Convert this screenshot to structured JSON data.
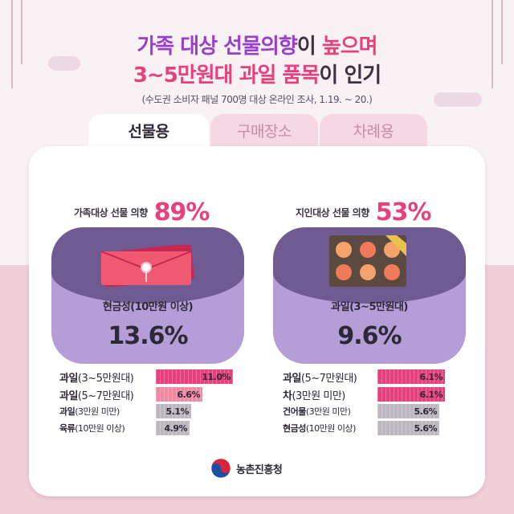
{
  "title": {
    "line1_part1": "가족 대상 선물의향",
    "line1_part2": "이 ",
    "line1_part3": "높으며",
    "line2_part1": "3~5만원대 과일 품목",
    "line2_part2": "이 인기"
  },
  "subtitle": "(수도권 소비자 패널 700명 대상 온라인 조사, 1.19. ~ 20.)",
  "tabs": [
    {
      "label": "선물용",
      "active": true
    },
    {
      "label": "구매장소",
      "active": false
    },
    {
      "label": "차례용",
      "active": false
    }
  ],
  "family": {
    "label": "가족대상 선물 의향",
    "percent": "89%",
    "top_item": "현금성(10만원 이상)",
    "top_value": "13.6%",
    "rows": [
      {
        "bold": "과일",
        "rest": "(3~5만원대)",
        "value": "11.0%",
        "color": "#e8407c",
        "fraction": 1.0
      },
      {
        "bold": "과일",
        "rest": "(5~7만원대)",
        "value": "6.6%",
        "color": "#f08aa2",
        "fraction": 0.6
      },
      {
        "bold": "과일",
        "rest": "(3만원 미만)",
        "value": "5.1%",
        "color": "#bdb7bf",
        "fraction": 0.46
      },
      {
        "bold": "육류",
        "rest": "(10만원 이상)",
        "value": "4.9%",
        "color": "#bdb7bf",
        "fraction": 0.44
      }
    ]
  },
  "acquaint": {
    "label": "지인대상 선물 의향",
    "percent": "53%",
    "top_item": "과일(3~5만원대)",
    "top_value": "9.6%",
    "rows": [
      {
        "bold": "과일",
        "rest": "(5~7만원대)",
        "value": "6.1%",
        "color": "#e8407c",
        "fraction": 1.0
      },
      {
        "bold": "차",
        "rest": "(3만원 미만)",
        "value": "6.1%",
        "color": "#e8407c",
        "fraction": 1.0
      },
      {
        "bold": "건어물",
        "rest": "(3만원 미만)",
        "value": "5.6%",
        "color": "#bdb7bf",
        "fraction": 0.92
      },
      {
        "bold": "현금성",
        "rest": "(10만원 이상)",
        "value": "5.6%",
        "color": "#bdb7bf",
        "fraction": 0.92
      }
    ]
  },
  "footer": {
    "org": "농촌진흥청",
    "logo_icon": "taegeuk-emblem-icon"
  },
  "colors": {
    "accent_pink": "#e8407c",
    "accent_purple": "#9a3fc8",
    "panel_dark": "#6f5a92",
    "panel_light": "#b59dd8"
  }
}
